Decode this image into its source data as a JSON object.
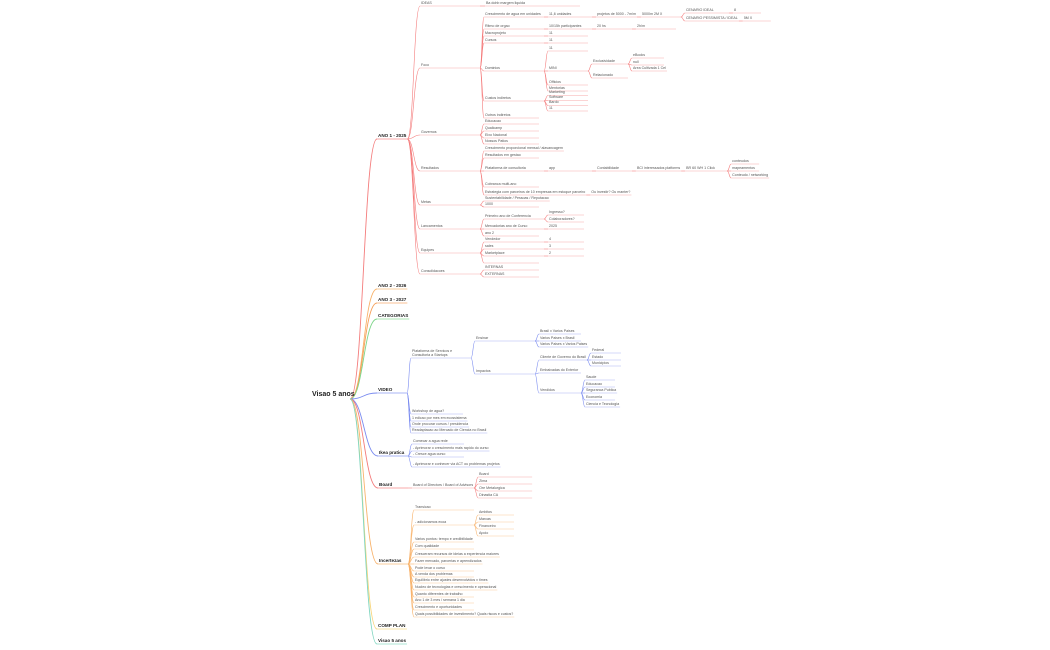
{
  "title": "Visao 5 anos",
  "branch_colors": {
    "a1": "#f47c7c",
    "a2": "#f8b26a",
    "a3": "#f5a05a",
    "cat": "#7ed68a",
    "vid": "#7b8cf0",
    "ikea": "#7b8cf0",
    "board": "#f47c7c",
    "inc": "#f8b26a",
    "comp": "#f7d57a",
    "v5": "#7fd6c0"
  },
  "nodes": [
    {
      "id": "a1",
      "p": "root",
      "t": "ANO 1 - 2025"
    },
    {
      "id": "a2",
      "p": "root",
      "t": "ANO 2 - 2026"
    },
    {
      "id": "a3",
      "p": "root",
      "t": "ANO 3 - 2027"
    },
    {
      "id": "cat",
      "p": "root",
      "t": "CATEGORIAS"
    },
    {
      "id": "vid",
      "p": "root",
      "t": "VIDEO"
    },
    {
      "id": "ikea",
      "p": "root",
      "t": "Ikea pratica"
    },
    {
      "id": "board",
      "p": "root",
      "t": "Board"
    },
    {
      "id": "inc",
      "p": "root",
      "t": "Incertezas"
    },
    {
      "id": "comp",
      "p": "root",
      "t": "COMP PLAN"
    },
    {
      "id": "v5",
      "p": "root",
      "t": "Visao 5 anos"
    },
    {
      "id": "ideas",
      "p": "a1",
      "t": "IDEAS"
    },
    {
      "id": "ideas1",
      "p": "ideas",
      "t": "Ba dohb margem liquida"
    },
    {
      "id": "foco",
      "p": "a1",
      "t": "Foco"
    },
    {
      "id": "f1",
      "p": "foco",
      "t": "Crescimento de agua em unidades"
    },
    {
      "id": "f1a",
      "p": "f1",
      "t": "11,6 unidades"
    },
    {
      "id": "f1b",
      "p": "f1a",
      "t": "projetos de 5000 - 7m/m"
    },
    {
      "id": "f1c",
      "p": "f1b",
      "t": "5000m 2M X"
    },
    {
      "id": "f1d",
      "p": "f1c",
      "t": "CENARIO IDEAL"
    },
    {
      "id": "f1d1",
      "p": "f1d",
      "t": "8"
    },
    {
      "id": "f1e",
      "p": "f1c",
      "t": "CENARIO PESSIMISTA / IDEAL"
    },
    {
      "id": "f1e1",
      "p": "f1e",
      "t": "5M X"
    },
    {
      "id": "f2",
      "p": "foco",
      "t": "Ritmo de orgao"
    },
    {
      "id": "f2a",
      "p": "f2",
      "t": "10/15h participantes"
    },
    {
      "id": "f2b",
      "p": "f2a",
      "t": "20 hs"
    },
    {
      "id": "f2c",
      "p": "f2b",
      "t": "2h/m"
    },
    {
      "id": "f3",
      "p": "foco",
      "t": "Macroprojeto"
    },
    {
      "id": "f3a",
      "p": "f3",
      "t": "11"
    },
    {
      "id": "f4",
      "p": "foco",
      "t": "Cursos"
    },
    {
      "id": "f4a",
      "p": "f4",
      "t": "11"
    },
    {
      "id": "f5",
      "p": "foco",
      "t": "Dominios"
    },
    {
      "id": "f5a",
      "p": "f5",
      "t": "11"
    },
    {
      "id": "f5b",
      "p": "f5",
      "t": "MINI"
    },
    {
      "id": "f5b1",
      "p": "f5b",
      "t": "Exclusividade"
    },
    {
      "id": "f5b1a",
      "p": "f5b1",
      "t": "eBooks"
    },
    {
      "id": "f5b1b",
      "p": "f5b1",
      "t": "null"
    },
    {
      "id": "f5b1c",
      "p": "f5b1",
      "t": "Area Cultivada 1 Cel"
    },
    {
      "id": "f5b2",
      "p": "f5b",
      "t": "Relacionado"
    },
    {
      "id": "f5c",
      "p": "f5",
      "t": "Officios"
    },
    {
      "id": "f5d",
      "p": "f5",
      "t": "Mentorias"
    },
    {
      "id": "f6",
      "p": "foco",
      "t": "Custos indiretos"
    },
    {
      "id": "f6a",
      "p": "f6",
      "t": "Marketing"
    },
    {
      "id": "f6b",
      "p": "f6",
      "t": "Software"
    },
    {
      "id": "f6c",
      "p": "f6",
      "t": "Bardo"
    },
    {
      "id": "f6d",
      "p": "f6",
      "t": "11"
    },
    {
      "id": "f7",
      "p": "foco",
      "t": "Outros indiretos"
    },
    {
      "id": "gov",
      "p": "a1",
      "t": "Governos"
    },
    {
      "id": "g1",
      "p": "gov",
      "t": "Educacao"
    },
    {
      "id": "g2",
      "p": "gov",
      "t": "Qualicamp"
    },
    {
      "id": "g3",
      "p": "gov",
      "t": "Eixo Nacional"
    },
    {
      "id": "g4",
      "p": "gov",
      "t": "Nossos Patios"
    },
    {
      "id": "res",
      "p": "a1",
      "t": "Resultados"
    },
    {
      "id": "r1",
      "p": "res",
      "t": "Crescimento proporcional mensal / alavancagem"
    },
    {
      "id": "r2",
      "p": "res",
      "t": "Resultados em gestao"
    },
    {
      "id": "r3",
      "p": "res",
      "t": "Plataforma de consultoria"
    },
    {
      "id": "r3a",
      "p": "r3",
      "t": "app"
    },
    {
      "id": "r3b",
      "p": "r3a",
      "t": "Contabilidade"
    },
    {
      "id": "r3c",
      "p": "r3b",
      "t": "BCI interessados platforms"
    },
    {
      "id": "r3d",
      "p": "r3c",
      "t": "BR 60 WH 1 Click"
    },
    {
      "id": "r3d1",
      "p": "r3d",
      "t": "conteudos"
    },
    {
      "id": "r3d2",
      "p": "r3d",
      "t": "mapeamentos"
    },
    {
      "id": "r3d3",
      "p": "r3d",
      "t": "Conteudo / networking"
    },
    {
      "id": "r4",
      "p": "res",
      "t": "Cobranca multi-ano"
    },
    {
      "id": "r5",
      "p": "res",
      "t": "Estrategia com parceiros de 10 empresas em estoque parceiro"
    },
    {
      "id": "r5a",
      "p": "r5",
      "t": "Ou investir? Ou manter?"
    },
    {
      "id": "metas",
      "p": "a1",
      "t": "Metas"
    },
    {
      "id": "m1",
      "p": "metas",
      "t": "Sustentabilidade / Pessoas / Reputacao"
    },
    {
      "id": "m2",
      "p": "metas",
      "t": "1000"
    },
    {
      "id": "lanc",
      "p": "a1",
      "t": "Lancamentos"
    },
    {
      "id": "l1",
      "p": "lanc",
      "t": "Primeiro ano de Conferencia"
    },
    {
      "id": "l1a",
      "p": "l1",
      "t": "Ingresso?"
    },
    {
      "id": "l1b",
      "p": "l1",
      "t": "Colaboradores?"
    },
    {
      "id": "l2",
      "p": "lanc",
      "t": "Mercadorias ano de Curso"
    },
    {
      "id": "l2a",
      "p": "l2",
      "t": "2025"
    },
    {
      "id": "l3",
      "p": "lanc",
      "t": "ano 2"
    },
    {
      "id": "eq",
      "p": "a1",
      "t": "Equipes"
    },
    {
      "id": "e1",
      "p": "eq",
      "t": "Vendedor"
    },
    {
      "id": "e1a",
      "p": "e1",
      "t": "4"
    },
    {
      "id": "e2",
      "p": "eq",
      "t": "sales"
    },
    {
      "id": "e2a",
      "p": "e2",
      "t": "3"
    },
    {
      "id": "e3",
      "p": "eq",
      "t": "Marketplace"
    },
    {
      "id": "e3a",
      "p": "e3",
      "t": "2"
    },
    {
      "id": "e4",
      "p": "eq",
      "t": ""
    },
    {
      "id": "cons",
      "p": "a1",
      "t": "Consolidacoes"
    },
    {
      "id": "c1",
      "p": "cons",
      "t": "INTERNAS"
    },
    {
      "id": "c2",
      "p": "cons",
      "t": "EXTERNAS"
    },
    {
      "id": "v1",
      "p": "vid",
      "t": "Plataforma de Servicos e Consultoria a Startups"
    },
    {
      "id": "v1a",
      "p": "v1",
      "t": "Ensinar"
    },
    {
      "id": "v1a1",
      "p": "v1a",
      "t": "Brasil x Varios Paises"
    },
    {
      "id": "v1a2",
      "p": "v1a",
      "t": "Varios Paises x Brasil"
    },
    {
      "id": "v1a3",
      "p": "v1a",
      "t": "Varios Paises x Varios Paises"
    },
    {
      "id": "v1b",
      "p": "v1",
      "t": "Impactos"
    },
    {
      "id": "v1b1",
      "p": "v1b",
      "t": "Cliente de Governo do Brasil"
    },
    {
      "id": "v1b1a",
      "p": "v1b1",
      "t": "Federal"
    },
    {
      "id": "v1b1b",
      "p": "v1b1",
      "t": "Estado"
    },
    {
      "id": "v1b1c",
      "p": "v1b1",
      "t": "Municipios"
    },
    {
      "id": "v1b2",
      "p": "v1b",
      "t": "Embaixadas do Exterior"
    },
    {
      "id": "v1b3",
      "p": "v1b",
      "t": "Vendidos"
    },
    {
      "id": "v1b3a",
      "p": "v1b3",
      "t": "Saude"
    },
    {
      "id": "v1b3b",
      "p": "v1b3",
      "t": "Educacao"
    },
    {
      "id": "v1b3c",
      "p": "v1b3",
      "t": "Seguranca Publica"
    },
    {
      "id": "v1b3d",
      "p": "v1b3",
      "t": "Economia"
    },
    {
      "id": "v1b3e",
      "p": "v1b3",
      "t": "Ciencia e Tecnologia"
    },
    {
      "id": "v2",
      "p": "vid",
      "t": "Workshop de agua?"
    },
    {
      "id": "v3",
      "p": "vid",
      "t": "1 edicao por mes em ecossistema"
    },
    {
      "id": "v4",
      "p": "vid",
      "t": "Onde procurar cursos / presidencia"
    },
    {
      "id": "v5n",
      "p": "vid",
      "t": "Readaptacao ao Mercado de Ciencia no Brasil"
    },
    {
      "id": "k1",
      "p": "ikea",
      "t": "Comecar a agua rede"
    },
    {
      "id": "k2",
      "p": "ikea",
      "t": "- Aprimorar o crescimento mais rapido do curso"
    },
    {
      "id": "k3",
      "p": "ikea",
      "t": "- Cresce agua curso"
    },
    {
      "id": "k4",
      "p": "ikea",
      "t": "- Aprimorar e conhecer via ACT ou problemas projetos"
    },
    {
      "id": "b1",
      "p": "board",
      "t": "Board of Directors / Board of Advisors"
    },
    {
      "id": "b1a",
      "p": "b1",
      "t": "Board"
    },
    {
      "id": "b1b",
      "p": "b1",
      "t": "Zima"
    },
    {
      "id": "b1c",
      "p": "b1",
      "t": "Ore Metalurgica"
    },
    {
      "id": "b1d",
      "p": "b1",
      "t": "Dinastia CA"
    },
    {
      "id": "i1",
      "p": "inc",
      "t": "Transicao"
    },
    {
      "id": "i2",
      "p": "inc",
      "t": "- adicionamos ecoa"
    },
    {
      "id": "i2a",
      "p": "i2",
      "t": "Ambitos"
    },
    {
      "id": "i2b",
      "p": "i2",
      "t": "Marcas"
    },
    {
      "id": "i2c",
      "p": "i2",
      "t": "Financeiro"
    },
    {
      "id": "i2d",
      "p": "i2",
      "t": "Apoio"
    },
    {
      "id": "i3",
      "p": "inc",
      "t": "Varios pontos: tempo e credibilidade"
    },
    {
      "id": "i4",
      "p": "inc",
      "t": "Com qualidade"
    },
    {
      "id": "i5",
      "p": "inc",
      "t": "Cresceram recursos de ideias a experiencia maiores"
    },
    {
      "id": "i6",
      "p": "inc",
      "t": "Fazer mercado, parcerias e aprendizados"
    },
    {
      "id": "i7",
      "p": "inc",
      "t": "Pode levar o curso"
    },
    {
      "id": "i8",
      "p": "inc",
      "t": "A venda dos problemas"
    },
    {
      "id": "i9",
      "p": "inc",
      "t": "Equilibrio entre ajustes desenvolvidos x times"
    },
    {
      "id": "i10",
      "p": "inc",
      "t": "Nucleo de tecnologias e crescimento e operacional"
    },
    {
      "id": "i11",
      "p": "inc",
      "t": "Quanto diferentes de trabalho"
    },
    {
      "id": "i12",
      "p": "inc",
      "t": "Ano 1 de 3 mes / semana 1 dia"
    },
    {
      "id": "i13",
      "p": "inc",
      "t": "Crescimento e oportunidades"
    },
    {
      "id": "i14",
      "p": "inc",
      "t": "Quais possibilidades de investimento? Quais riscos e custos?"
    }
  ]
}
